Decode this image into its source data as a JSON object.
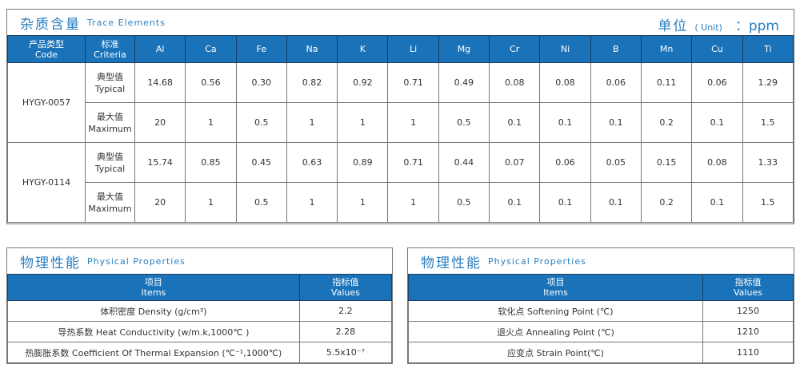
{
  "trace": {
    "title_cn": "杂质含量",
    "title_en": "Trace Elements",
    "unit_cn": "单位",
    "unit_en": "( Unit)",
    "unit_value": "：ppm",
    "head_code_cn": "产品类型",
    "head_code_en": "Code",
    "head_crit_cn": "标准",
    "head_crit_en": "Criteria",
    "elements": [
      "Al",
      "Ca",
      "Fe",
      "Na",
      "K",
      "Li",
      "Mg",
      "Cr",
      "Ni",
      "B",
      "Mn",
      "Cu",
      "Ti"
    ],
    "products": [
      {
        "code": "HYGY-0057",
        "rows": [
          {
            "cn": "典型值",
            "en": "Typical",
            "values": [
              "14.68",
              "0.56",
              "0.30",
              "0.82",
              "0.92",
              "0.71",
              "0.49",
              "0.08",
              "0.08",
              "0.06",
              "0.11",
              "0.06",
              "1.29"
            ]
          },
          {
            "cn": "最大值",
            "en": "Maximum",
            "values": [
              "20",
              "1",
              "0.5",
              "1",
              "1",
              "1",
              "0.5",
              "0.1",
              "0.1",
              "0.1",
              "0.2",
              "0.1",
              "1.5"
            ]
          }
        ]
      },
      {
        "code": "HYGY-0114",
        "rows": [
          {
            "cn": "典型值",
            "en": "Typical",
            "values": [
              "15.74",
              "0.85",
              "0.45",
              "0.63",
              "0.89",
              "0.71",
              "0.44",
              "0.07",
              "0.06",
              "0.05",
              "0.15",
              "0.08",
              "1.33"
            ]
          },
          {
            "cn": "最大值",
            "en": "Maximum",
            "values": [
              "20",
              "1",
              "0.5",
              "1",
              "1",
              "1",
              "0.5",
              "0.1",
              "0.1",
              "0.1",
              "0.2",
              "0.1",
              "1.5"
            ]
          }
        ]
      }
    ]
  },
  "physical": [
    {
      "title_cn": "物理性能",
      "title_en": "Physical  Properties",
      "items_cn": "项目",
      "items_en": "Items",
      "values_cn": "指标值",
      "values_en": "Values",
      "rows": [
        {
          "item": "体积密度 Density (g/cm³)",
          "value": "2.2"
        },
        {
          "item": "导热系数 Heat Conductivity (w/m.k,1000℃ )",
          "value": "2.28"
        },
        {
          "item": "热膨胀系数 Coefficient Of Thermal Expansion (℃⁻¹,1000℃)",
          "value": "5.5x10⁻⁷"
        }
      ]
    },
    {
      "title_cn": "物理性能",
      "title_en": "Physical  Properties",
      "items_cn": "项目",
      "items_en": "Items",
      "values_cn": "指标值",
      "values_en": "Values",
      "rows": [
        {
          "item": "软化点 Softening Point (℃)",
          "value": "1250"
        },
        {
          "item": "退火点 Annealing Point (℃)",
          "value": "1210"
        },
        {
          "item": "应变点 Strain Point(℃)",
          "value": "1110"
        }
      ]
    }
  ]
}
